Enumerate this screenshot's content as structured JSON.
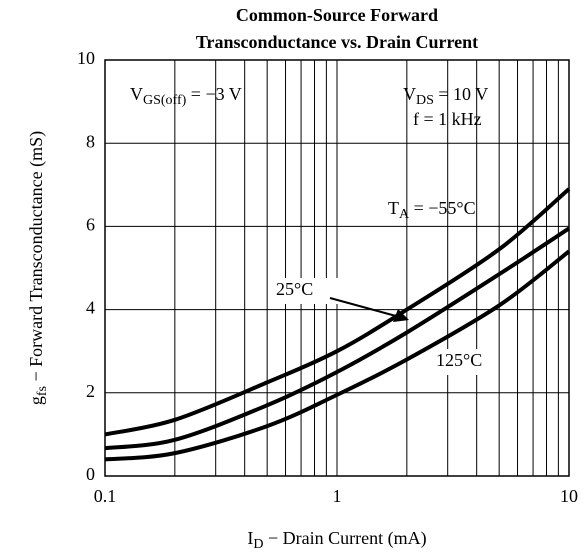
{
  "chart_data": {
    "type": "line",
    "title": [
      "Common-Source Forward",
      "Transconductance vs. Drain Current"
    ],
    "x_label": {
      "main": "I",
      "sub": "D",
      "rest": " − Drain Current (mA)"
    },
    "y_label": {
      "main": "g",
      "sub": "fs",
      "rest": " − Forward Transconductance (mS)"
    },
    "annotations": [
      {
        "main": "V",
        "sub": "GS(off)",
        "rest": " = −3 V"
      },
      {
        "main": "V",
        "sub": "DS",
        "rest": " = 10 V"
      },
      {
        "main": "f = 1 kHz",
        "sub": "",
        "rest": ""
      }
    ],
    "series_label_prefix": {
      "main": "T",
      "sub": "A",
      "rest": " = "
    },
    "x": [
      0.1,
      0.2,
      0.5,
      1,
      2,
      5,
      10
    ],
    "series": [
      {
        "name": "−55°C",
        "color": "#000000",
        "values": [
          1.0,
          1.35,
          2.25,
          3.0,
          4.0,
          5.45,
          6.9
        ]
      },
      {
        "name": "25°C",
        "color": "#000000",
        "values": [
          0.67,
          0.87,
          1.7,
          2.5,
          3.45,
          4.85,
          5.95
        ]
      },
      {
        "name": "125°C",
        "color": "#000000",
        "values": [
          0.4,
          0.55,
          1.2,
          1.95,
          2.8,
          4.1,
          5.4
        ]
      }
    ],
    "xlim": [
      0.1,
      10
    ],
    "xticks": [
      0.1,
      1,
      10
    ],
    "xscale": "log",
    "ylim": [
      0,
      10
    ],
    "yticks": [
      0,
      2,
      4,
      6,
      8,
      10
    ],
    "grid": true
  }
}
